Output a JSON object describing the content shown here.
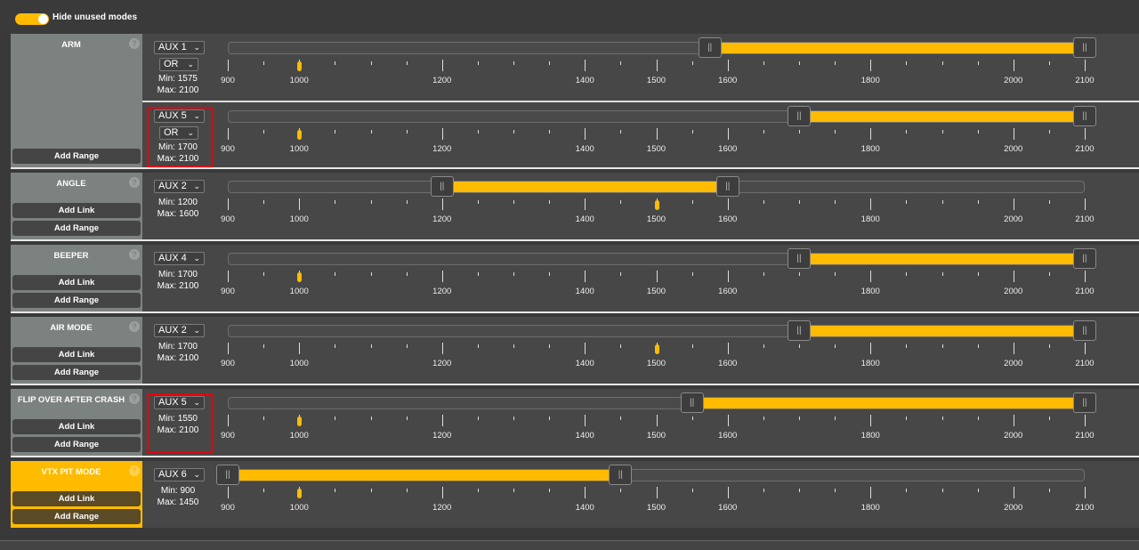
{
  "header": {
    "toggle_label": "Hide unused modes",
    "toggle_on": true
  },
  "scale": {
    "min": 900,
    "max": 2100,
    "labels": [
      900,
      1000,
      1200,
      1400,
      1500,
      1600,
      1800,
      2000,
      2100
    ]
  },
  "colors": {
    "accent": "#ffbb00",
    "highlight": "#e8000b"
  },
  "modes": [
    {
      "name": "ARM",
      "active": false,
      "buttons": [
        "Add Range"
      ],
      "ranges": [
        {
          "channel": "AUX 1",
          "logic": "OR",
          "min_label": "Min: 1575",
          "max_label": "Max: 2100",
          "min": 1575,
          "max": 2100,
          "indicator": 1000,
          "highlighted": false
        },
        {
          "channel": "AUX 5",
          "logic": "OR",
          "min_label": "Min: 1700",
          "max_label": "Max: 2100",
          "min": 1700,
          "max": 2100,
          "indicator": 1000,
          "highlighted": true
        }
      ]
    },
    {
      "name": "ANGLE",
      "active": false,
      "buttons": [
        "Add Link",
        "Add Range"
      ],
      "ranges": [
        {
          "channel": "AUX 2",
          "min_label": "Min: 1200",
          "max_label": "Max: 1600",
          "min": 1200,
          "max": 1600,
          "indicator": 1500,
          "highlighted": false
        }
      ]
    },
    {
      "name": "BEEPER",
      "active": false,
      "buttons": [
        "Add Link",
        "Add Range"
      ],
      "ranges": [
        {
          "channel": "AUX 4",
          "min_label": "Min: 1700",
          "max_label": "Max: 2100",
          "min": 1700,
          "max": 2100,
          "indicator": 1000,
          "highlighted": false
        }
      ]
    },
    {
      "name": "AIR MODE",
      "active": false,
      "buttons": [
        "Add Link",
        "Add Range"
      ],
      "ranges": [
        {
          "channel": "AUX 2",
          "min_label": "Min: 1700",
          "max_label": "Max: 2100",
          "min": 1700,
          "max": 2100,
          "indicator": 1500,
          "highlighted": false
        }
      ]
    },
    {
      "name": "FLIP OVER AFTER CRASH",
      "active": false,
      "buttons": [
        "Add Link",
        "Add Range"
      ],
      "ranges": [
        {
          "channel": "AUX 5",
          "min_label": "Min: 1550",
          "max_label": "Max: 2100",
          "min": 1550,
          "max": 2100,
          "indicator": 1000,
          "highlighted": true
        }
      ]
    },
    {
      "name": "VTX PIT MODE",
      "active": true,
      "buttons": [
        "Add Link",
        "Add Range"
      ],
      "ranges": [
        {
          "channel": "AUX 6",
          "min_label": "Min: 900",
          "max_label": "Max: 1450",
          "min": 900,
          "max": 1450,
          "indicator": 1000,
          "highlighted": false
        }
      ]
    }
  ]
}
